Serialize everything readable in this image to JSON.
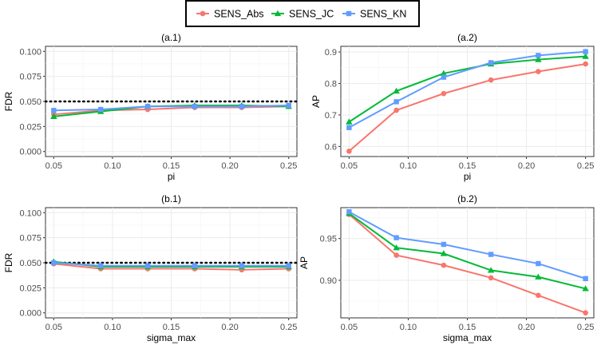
{
  "legend": {
    "items": [
      {
        "name": "SENS_Abs",
        "color": "#F8766D",
        "shape": "circle"
      },
      {
        "name": "SENS_JC",
        "color": "#00BA38",
        "shape": "triangle"
      },
      {
        "name": "SENS_KN",
        "color": "#619CFF",
        "shape": "square"
      }
    ]
  },
  "chart_data": [
    {
      "id": "a1",
      "type": "line",
      "title": "(a.1)",
      "xlabel": "pi",
      "ylabel": "FDR",
      "x": [
        0.05,
        0.09,
        0.13,
        0.17,
        0.21,
        0.25
      ],
      "xlim": [
        0.043,
        0.257
      ],
      "ylim": [
        -0.005,
        0.105
      ],
      "xticks": [
        0.05,
        0.1,
        0.15,
        0.2,
        0.25
      ],
      "xtick_labels": [
        "0.05",
        "0.10",
        "0.15",
        "0.20",
        "0.25"
      ],
      "yticks": [
        0.0,
        0.025,
        0.05,
        0.075,
        0.1
      ],
      "ytick_labels": [
        "0.000",
        "0.025",
        "0.050",
        "0.075",
        "0.100"
      ],
      "reference_line": {
        "y": 0.05,
        "style": "dotted"
      },
      "series": [
        {
          "name": "SENS_Abs",
          "values": [
            0.037,
            0.041,
            0.042,
            0.044,
            0.044,
            0.045
          ]
        },
        {
          "name": "SENS_JC",
          "values": [
            0.035,
            0.04,
            0.045,
            0.046,
            0.046,
            0.045
          ]
        },
        {
          "name": "SENS_KN",
          "values": [
            0.041,
            0.042,
            0.045,
            0.045,
            0.045,
            0.046
          ]
        }
      ]
    },
    {
      "id": "a2",
      "type": "line",
      "title": "(a.2)",
      "xlabel": "pi",
      "ylabel": "AP",
      "x": [
        0.05,
        0.09,
        0.13,
        0.17,
        0.21,
        0.25
      ],
      "xlim": [
        0.043,
        0.257
      ],
      "ylim": [
        0.568,
        0.918
      ],
      "xticks": [
        0.05,
        0.1,
        0.15,
        0.2,
        0.25
      ],
      "xtick_labels": [
        "0.05",
        "0.10",
        "0.15",
        "0.20",
        "0.25"
      ],
      "yticks": [
        0.6,
        0.7,
        0.8,
        0.9
      ],
      "ytick_labels": [
        "0.6",
        "0.7",
        "0.8",
        "0.9"
      ],
      "series": [
        {
          "name": "SENS_Abs",
          "values": [
            0.585,
            0.715,
            0.768,
            0.811,
            0.838,
            0.862
          ]
        },
        {
          "name": "SENS_JC",
          "values": [
            0.678,
            0.776,
            0.832,
            0.862,
            0.876,
            0.886
          ]
        },
        {
          "name": "SENS_KN",
          "values": [
            0.66,
            0.742,
            0.82,
            0.866,
            0.889,
            0.901
          ]
        }
      ]
    },
    {
      "id": "b1",
      "type": "line",
      "title": "(b.1)",
      "xlabel": "sigma_max",
      "ylabel": "FDR",
      "x": [
        0.05,
        0.09,
        0.13,
        0.17,
        0.21,
        0.25
      ],
      "xlim": [
        0.043,
        0.257
      ],
      "ylim": [
        -0.005,
        0.105
      ],
      "xticks": [
        0.05,
        0.1,
        0.15,
        0.2,
        0.25
      ],
      "xtick_labels": [
        "0.05",
        "0.10",
        "0.15",
        "0.20",
        "0.25"
      ],
      "yticks": [
        0.0,
        0.025,
        0.05,
        0.075,
        0.1
      ],
      "ytick_labels": [
        "0.000",
        "0.025",
        "0.050",
        "0.075",
        "0.100"
      ],
      "reference_line": {
        "y": 0.05,
        "style": "dotted"
      },
      "series": [
        {
          "name": "SENS_Abs",
          "values": [
            0.049,
            0.044,
            0.044,
            0.044,
            0.043,
            0.044
          ]
        },
        {
          "name": "SENS_JC",
          "values": [
            0.051,
            0.046,
            0.046,
            0.046,
            0.046,
            0.046
          ]
        },
        {
          "name": "SENS_KN",
          "values": [
            0.05,
            0.047,
            0.047,
            0.047,
            0.047,
            0.047
          ]
        }
      ]
    },
    {
      "id": "b2",
      "type": "line",
      "title": "(b.2)",
      "xlabel": "sigma_max",
      "ylabel": "AP",
      "x": [
        0.05,
        0.09,
        0.13,
        0.17,
        0.21,
        0.25
      ],
      "xlim": [
        0.043,
        0.257
      ],
      "ylim": [
        0.855,
        0.987
      ],
      "xticks": [
        0.05,
        0.1,
        0.15,
        0.2,
        0.25
      ],
      "xtick_labels": [
        "0.05",
        "0.10",
        "0.15",
        "0.20",
        "0.25"
      ],
      "yticks": [
        0.9,
        0.95
      ],
      "ytick_labels": [
        "0.90",
        "0.95"
      ],
      "series": [
        {
          "name": "SENS_Abs",
          "values": [
            0.979,
            0.93,
            0.918,
            0.903,
            0.882,
            0.861
          ]
        },
        {
          "name": "SENS_JC",
          "values": [
            0.98,
            0.939,
            0.932,
            0.912,
            0.904,
            0.89
          ]
        },
        {
          "name": "SENS_KN",
          "values": [
            0.982,
            0.951,
            0.943,
            0.931,
            0.92,
            0.902
          ]
        }
      ]
    }
  ]
}
